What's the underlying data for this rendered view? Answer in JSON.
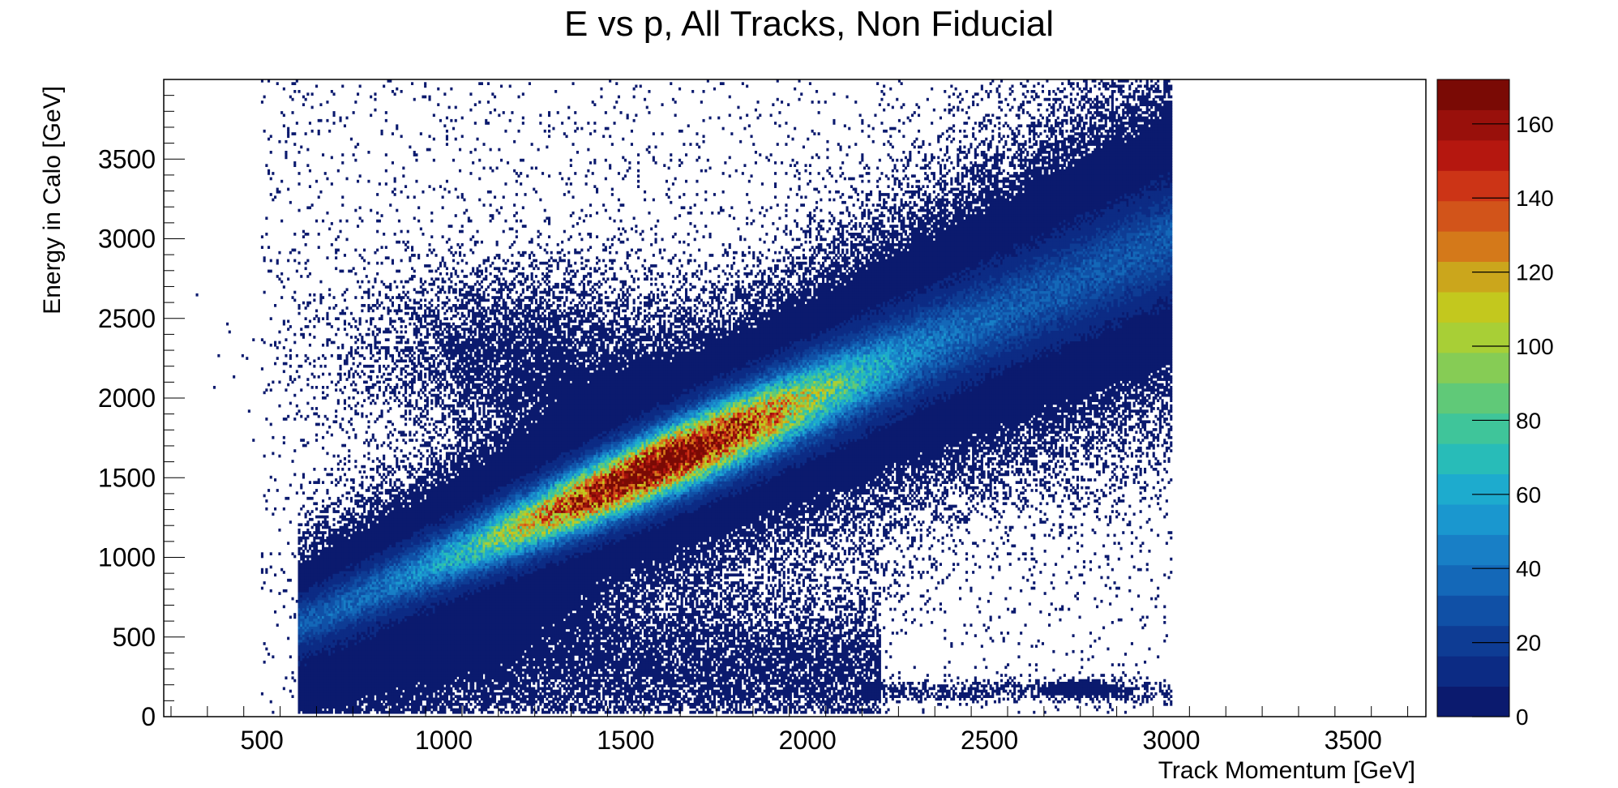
{
  "chart_data": {
    "type": "heatmap",
    "title": "E vs p, All Tracks, Non Fiducial",
    "xlabel": "Track Momentum [GeV]",
    "ylabel": "Energy in Calo [GeV]",
    "xlim": [
      230,
      3700
    ],
    "ylim": [
      0,
      4000
    ],
    "x_ticks": [
      500,
      1000,
      1500,
      2000,
      2500,
      3000,
      3500
    ],
    "y_ticks": [
      0,
      500,
      1000,
      1500,
      2000,
      2500,
      3000,
      3500
    ],
    "z_range": [
      0,
      172
    ],
    "z_ticks": [
      0,
      20,
      40,
      60,
      80,
      100,
      120,
      140,
      160
    ],
    "palette": [
      "#0b1a6e",
      "#0c2b84",
      "#0e3c94",
      "#1050a6",
      "#1468b8",
      "#187fc6",
      "#1a97cf",
      "#1dabce",
      "#28bcb8",
      "#3fc59a",
      "#60c978",
      "#86cc55",
      "#a8cf36",
      "#c3c81e",
      "#cba61c",
      "#d4791a",
      "#d2541a",
      "#cc3416",
      "#b5170f",
      "#99100b",
      "#7a0a05"
    ],
    "features": [
      {
        "description": "main E = p band",
        "p_range": [
          620,
          2950
        ],
        "e_at_p": [
          600,
          2950
        ],
        "peak_p": 1600,
        "peak_counts": 170
      },
      {
        "description": "diffuse lobe at low momentum",
        "p_center": 1200,
        "e_center": 2300
      },
      {
        "description": "low energy tail",
        "p_range": [
          700,
          2150
        ],
        "e_range": [
          50,
          700
        ]
      },
      {
        "description": "low energy strip",
        "p_range": [
          2150,
          3000
        ],
        "e_center": 160
      }
    ]
  }
}
